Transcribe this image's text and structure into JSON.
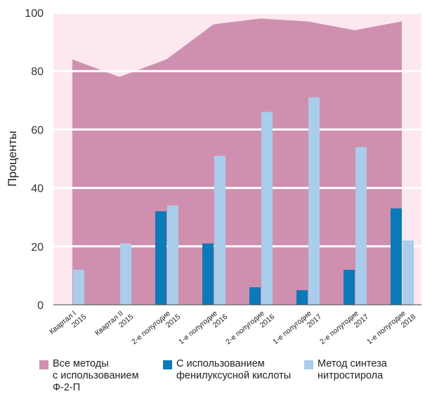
{
  "chart_data": {
    "type": "bar",
    "ylabel": "Проценты",
    "ylim": [
      0,
      100
    ],
    "yticks": [
      0,
      20,
      40,
      60,
      80,
      100
    ],
    "categories": [
      [
        "Квартал I",
        "2015"
      ],
      [
        "Квартал II",
        "2015"
      ],
      [
        "2-е полугодие",
        "2015"
      ],
      [
        "1-е полугодие",
        "2016"
      ],
      [
        "2-е полугодие",
        "2016"
      ],
      [
        "1-е полугодие",
        "2017"
      ],
      [
        "2-е полугодие",
        "2017"
      ],
      [
        "1-е полугодие",
        "2018"
      ]
    ],
    "series": [
      {
        "name": "Все методы\nс использованием\nФ-2-П",
        "kind": "area",
        "color": "#cf90b0",
        "values": [
          84,
          78,
          84,
          96,
          98,
          97,
          94,
          97
        ]
      },
      {
        "name": "С использованием\nфенилуксусной кислоты",
        "kind": "bar",
        "color": "#0b7ab8",
        "values": [
          0,
          0,
          32,
          21,
          6,
          5,
          12,
          33
        ]
      },
      {
        "name": "Метод синтеза\nнитростирола",
        "kind": "bar",
        "color": "#a9cdea",
        "values": [
          12,
          21,
          34,
          51,
          66,
          71,
          54,
          22
        ]
      }
    ],
    "grid": true,
    "plot_background": "#fde8ef",
    "grid_color": "#ffffff",
    "legend_position": "bottom"
  }
}
